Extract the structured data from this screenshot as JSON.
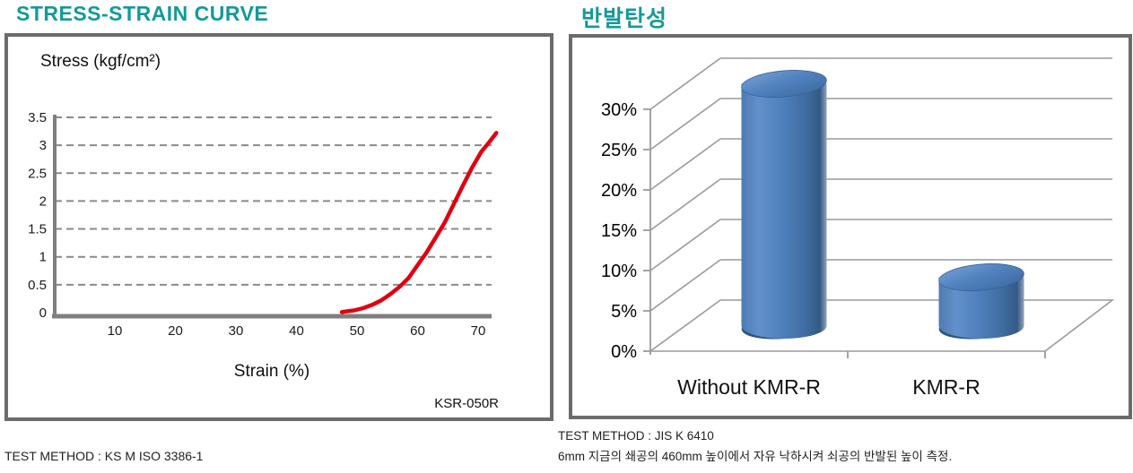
{
  "left_chart": {
    "title": "STRESS-STRAIN CURVE",
    "y_axis_label": "Stress (kgf/cm²)",
    "x_axis_label": "Strain (%)",
    "series_label": "KSR-050R",
    "test_method": "TEST METHOD : KS M ISO 3386-1"
  },
  "right_chart": {
    "title": "반발탄성",
    "categories": [
      "Without KMR-R",
      "KMR-R"
    ],
    "test_method": "TEST METHOD : JIS K 6410",
    "test_note": "6mm 지금의 쇄공의 460mm 높이에서 자유 낙하시켜 쇠공의 반발된 높이 측정."
  },
  "colors": {
    "accent_teal": "#14999B",
    "curve_red": "#E2000F",
    "cylinder_blue": "#4F81BD",
    "axis_gray": "#7F7F7F",
    "gridline_gray": "#8A8A8A",
    "box_border_gray": "#6B6B6B"
  },
  "chart_data": [
    {
      "type": "line",
      "title": "STRESS-STRAIN CURVE",
      "xlabel": "Strain (%)",
      "ylabel": "Stress (kgf/cm²)",
      "xlim": [
        0,
        74
      ],
      "ylim": [
        0,
        3.5
      ],
      "x_ticks": [
        10,
        20,
        30,
        40,
        50,
        60,
        70
      ],
      "y_ticks": [
        0,
        0.5,
        1,
        1.5,
        2,
        2.5,
        3,
        3.5
      ],
      "grid": "horizontal-dashed",
      "legend": "none",
      "series": [
        {
          "name": "KSR-050R",
          "color": "#E2000F",
          "points": [
            [
              47.5,
              0.01
            ],
            [
              48,
              0.02
            ],
            [
              49.5,
              0.04
            ],
            [
              51,
              0.08
            ],
            [
              52.5,
              0.14
            ],
            [
              54,
              0.22
            ],
            [
              55.5,
              0.33
            ],
            [
              57,
              0.46
            ],
            [
              58.5,
              0.62
            ],
            [
              60,
              0.85
            ],
            [
              61.5,
              1.08
            ],
            [
              63,
              1.35
            ],
            [
              64.5,
              1.62
            ],
            [
              66,
              1.95
            ],
            [
              67.5,
              2.28
            ],
            [
              69,
              2.6
            ],
            [
              70.5,
              2.88
            ],
            [
              71.8,
              3.05
            ],
            [
              73,
              3.22
            ]
          ]
        }
      ]
    },
    {
      "type": "bar",
      "style": "3d-cylinder",
      "title": "반발탄성",
      "categories": [
        "Without KMR-R",
        "KMR-R"
      ],
      "values": [
        30,
        6
      ],
      "unit": "%",
      "ylim": [
        0,
        30
      ],
      "y_ticks": [
        0,
        5,
        10,
        15,
        20,
        25,
        30
      ],
      "bar_color": "#4F81BD",
      "grid": "horizontal",
      "legend": "none"
    }
  ]
}
